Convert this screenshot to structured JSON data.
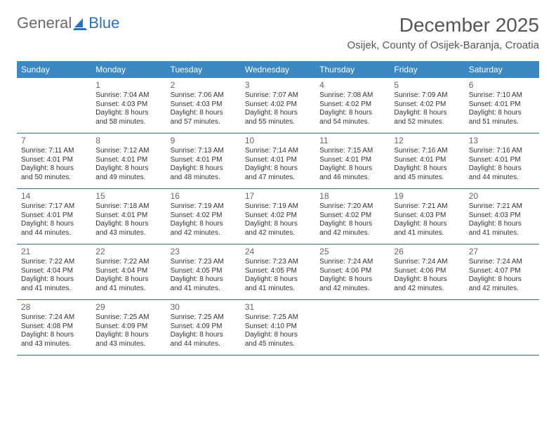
{
  "logo": {
    "text1": "General",
    "text2": "Blue",
    "color1": "#6a6a6a",
    "color2": "#2d72b8"
  },
  "header": {
    "title": "December 2025",
    "location": "Osijek, County of Osijek-Baranja, Croatia"
  },
  "colors": {
    "header_bg": "#3b88c3",
    "header_text": "#ffffff",
    "rule": "#2f6aa0",
    "text": "#333333",
    "daynum": "#666666"
  },
  "days_of_week": [
    "Sunday",
    "Monday",
    "Tuesday",
    "Wednesday",
    "Thursday",
    "Friday",
    "Saturday"
  ],
  "weeks": [
    [
      null,
      {
        "n": "1",
        "sr": "7:04 AM",
        "ss": "4:03 PM",
        "dl": "8 hours and 58 minutes."
      },
      {
        "n": "2",
        "sr": "7:06 AM",
        "ss": "4:03 PM",
        "dl": "8 hours and 57 minutes."
      },
      {
        "n": "3",
        "sr": "7:07 AM",
        "ss": "4:02 PM",
        "dl": "8 hours and 55 minutes."
      },
      {
        "n": "4",
        "sr": "7:08 AM",
        "ss": "4:02 PM",
        "dl": "8 hours and 54 minutes."
      },
      {
        "n": "5",
        "sr": "7:09 AM",
        "ss": "4:02 PM",
        "dl": "8 hours and 52 minutes."
      },
      {
        "n": "6",
        "sr": "7:10 AM",
        "ss": "4:01 PM",
        "dl": "8 hours and 51 minutes."
      }
    ],
    [
      {
        "n": "7",
        "sr": "7:11 AM",
        "ss": "4:01 PM",
        "dl": "8 hours and 50 minutes."
      },
      {
        "n": "8",
        "sr": "7:12 AM",
        "ss": "4:01 PM",
        "dl": "8 hours and 49 minutes."
      },
      {
        "n": "9",
        "sr": "7:13 AM",
        "ss": "4:01 PM",
        "dl": "8 hours and 48 minutes."
      },
      {
        "n": "10",
        "sr": "7:14 AM",
        "ss": "4:01 PM",
        "dl": "8 hours and 47 minutes."
      },
      {
        "n": "11",
        "sr": "7:15 AM",
        "ss": "4:01 PM",
        "dl": "8 hours and 46 minutes."
      },
      {
        "n": "12",
        "sr": "7:16 AM",
        "ss": "4:01 PM",
        "dl": "8 hours and 45 minutes."
      },
      {
        "n": "13",
        "sr": "7:16 AM",
        "ss": "4:01 PM",
        "dl": "8 hours and 44 minutes."
      }
    ],
    [
      {
        "n": "14",
        "sr": "7:17 AM",
        "ss": "4:01 PM",
        "dl": "8 hours and 44 minutes."
      },
      {
        "n": "15",
        "sr": "7:18 AM",
        "ss": "4:01 PM",
        "dl": "8 hours and 43 minutes."
      },
      {
        "n": "16",
        "sr": "7:19 AM",
        "ss": "4:02 PM",
        "dl": "8 hours and 42 minutes."
      },
      {
        "n": "17",
        "sr": "7:19 AM",
        "ss": "4:02 PM",
        "dl": "8 hours and 42 minutes."
      },
      {
        "n": "18",
        "sr": "7:20 AM",
        "ss": "4:02 PM",
        "dl": "8 hours and 42 minutes."
      },
      {
        "n": "19",
        "sr": "7:21 AM",
        "ss": "4:03 PM",
        "dl": "8 hours and 41 minutes."
      },
      {
        "n": "20",
        "sr": "7:21 AM",
        "ss": "4:03 PM",
        "dl": "8 hours and 41 minutes."
      }
    ],
    [
      {
        "n": "21",
        "sr": "7:22 AM",
        "ss": "4:04 PM",
        "dl": "8 hours and 41 minutes."
      },
      {
        "n": "22",
        "sr": "7:22 AM",
        "ss": "4:04 PM",
        "dl": "8 hours and 41 minutes."
      },
      {
        "n": "23",
        "sr": "7:23 AM",
        "ss": "4:05 PM",
        "dl": "8 hours and 41 minutes."
      },
      {
        "n": "24",
        "sr": "7:23 AM",
        "ss": "4:05 PM",
        "dl": "8 hours and 41 minutes."
      },
      {
        "n": "25",
        "sr": "7:24 AM",
        "ss": "4:06 PM",
        "dl": "8 hours and 42 minutes."
      },
      {
        "n": "26",
        "sr": "7:24 AM",
        "ss": "4:06 PM",
        "dl": "8 hours and 42 minutes."
      },
      {
        "n": "27",
        "sr": "7:24 AM",
        "ss": "4:07 PM",
        "dl": "8 hours and 42 minutes."
      }
    ],
    [
      {
        "n": "28",
        "sr": "7:24 AM",
        "ss": "4:08 PM",
        "dl": "8 hours and 43 minutes."
      },
      {
        "n": "29",
        "sr": "7:25 AM",
        "ss": "4:09 PM",
        "dl": "8 hours and 43 minutes."
      },
      {
        "n": "30",
        "sr": "7:25 AM",
        "ss": "4:09 PM",
        "dl": "8 hours and 44 minutes."
      },
      {
        "n": "31",
        "sr": "7:25 AM",
        "ss": "4:10 PM",
        "dl": "8 hours and 45 minutes."
      },
      null,
      null,
      null
    ]
  ],
  "labels": {
    "sunrise": "Sunrise:",
    "sunset": "Sunset:",
    "daylight": "Daylight:"
  }
}
